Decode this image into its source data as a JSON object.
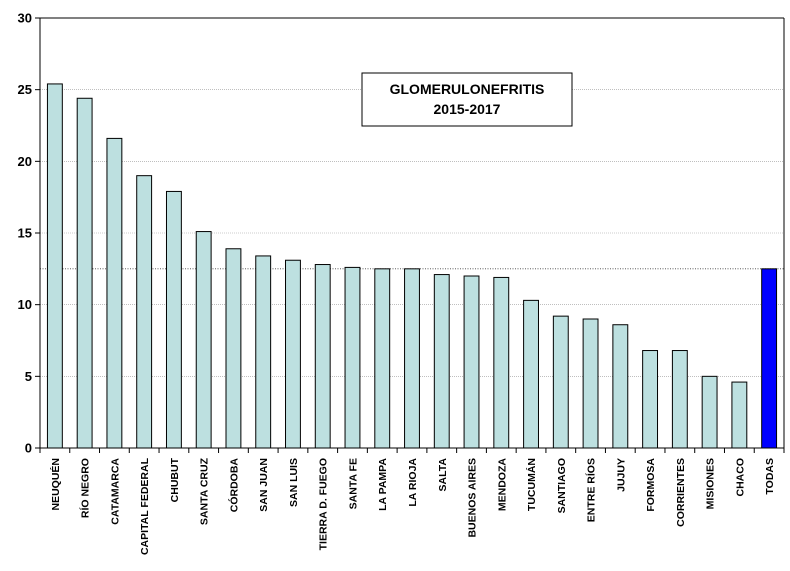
{
  "chart_data": {
    "type": "bar",
    "title": "GLOMERULONEFRITIS",
    "subtitle": "2015-2017",
    "categories": [
      "NEUQUÉN",
      "RÍO NEGRO",
      "CATAMARCA",
      "CAPITAL FEDERAL",
      "CHUBUT",
      "SANTA CRUZ",
      "CÓRDOBA",
      "SAN JUAN",
      "SAN LUIS",
      "TIERRA  D. FUEGO",
      "SANTA FE",
      "LA PAMPA",
      "LA RIOJA",
      "SALTA",
      "BUENOS AIRES",
      "MENDOZA",
      "TUCUMÁN",
      "SANTIAGO",
      "ENTRE RÍOS",
      "JUJUY",
      "FORMOSA",
      "CORRIENTES",
      "MISIONES",
      "CHACO",
      "TODAS"
    ],
    "values": [
      25.4,
      24.4,
      21.6,
      19.0,
      17.9,
      15.1,
      13.9,
      13.4,
      13.1,
      12.8,
      12.6,
      12.5,
      12.5,
      12.1,
      12.0,
      11.9,
      10.3,
      9.2,
      9.0,
      8.6,
      6.8,
      6.8,
      5.0,
      4.6,
      12.5
    ],
    "ylim": [
      0,
      30
    ],
    "yticks": [
      "0",
      "5",
      "10",
      "15",
      "20",
      "25",
      "30"
    ],
    "reference_line": 12.5,
    "grid": true,
    "colors": {
      "bar": "#bde0e0",
      "highlight_bar": "#0000ff",
      "grid": "#999999",
      "reference": "#444444"
    }
  }
}
